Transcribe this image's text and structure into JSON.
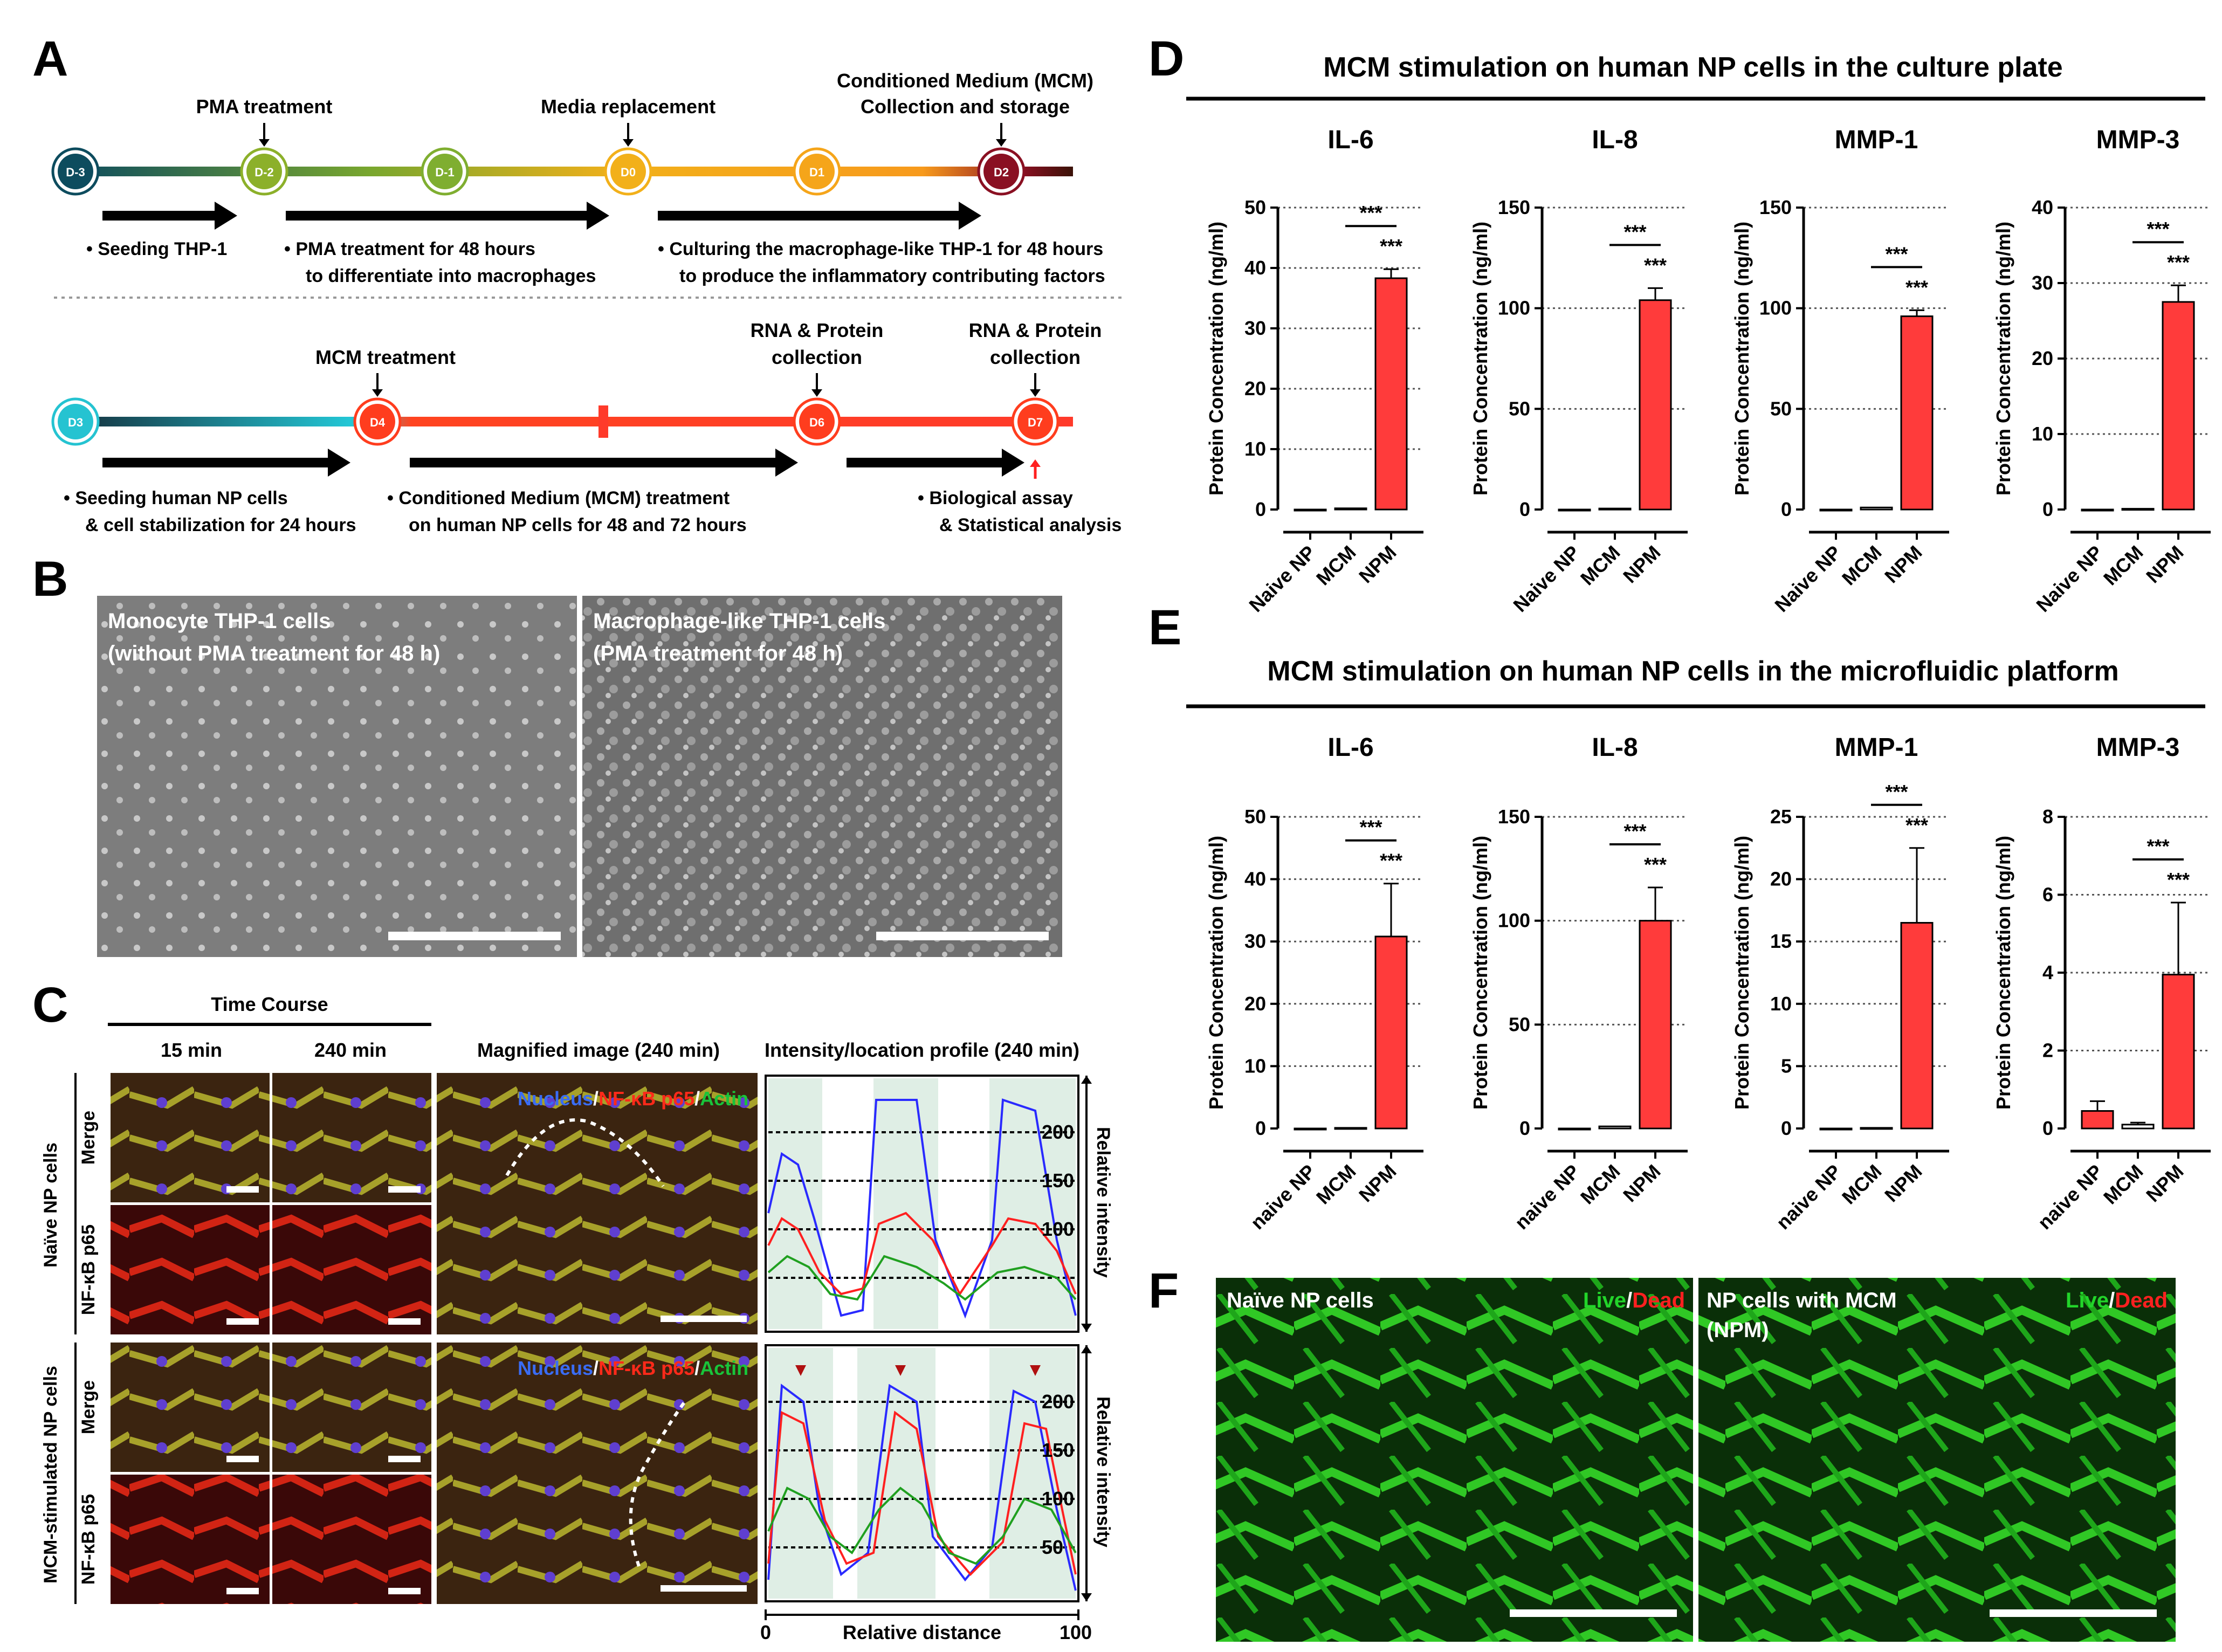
{
  "panels": {
    "A": "A",
    "B": "B",
    "C": "C",
    "D": "D",
    "E": "E",
    "F": "F"
  },
  "panel_a": {
    "timeline1": {
      "nodes": [
        "D-3",
        "D-2",
        "D-1",
        "D0",
        "D1",
        "D2"
      ],
      "top_labels": {
        "pma": "PMA treatment",
        "media": "Media replacement",
        "mcm1": "Conditioned Medium (MCM)",
        "mcm2": "Collection and storage"
      },
      "steps": [
        [
          "• Seeding THP-1"
        ],
        [
          "• PMA treatment for 48 hours",
          "to differentiate into macrophages"
        ],
        [
          "• Culturing the macrophage-like THP-1 for 48 hours",
          "to produce the inflammatory contributing factors"
        ]
      ]
    },
    "timeline2": {
      "nodes": [
        "D3",
        "D4",
        "D6",
        "D7"
      ],
      "top_labels": {
        "mcm_treat": "MCM treatment",
        "rna1a": "RNA & Protein",
        "rna1b": "collection",
        "rna2a": "RNA & Protein",
        "rna2b": "collection"
      },
      "steps": [
        [
          "• Seeding human NP cells",
          "& cell stabilization for 24 hours"
        ],
        [
          "• Conditioned Medium (MCM) treatment",
          "on human NP cells for 48 and 72 hours"
        ],
        [
          "• Biological assay",
          "& Statistical analysis"
        ]
      ]
    }
  },
  "panel_b": {
    "left_1": "Monocyte THP-1 cells",
    "left_2": "(without PMA treatment for 48 h)",
    "right_1": "Macrophage-like THP-1 cells",
    "right_2": "(PMA treatment for 48 h)"
  },
  "panel_c": {
    "time_course": "Time Course",
    "col_15": "15 min",
    "col_240": "240 min",
    "magnified": "Magnified image (240 min)",
    "profile": "Intensity/location profile (240 min)",
    "row_merge": "Merge",
    "row_nfkb": "NF-κB p65",
    "group_naive": "Naïve NP cells",
    "group_mcm": "MCM-stimulated NP cells",
    "legend_nucleus": "Nucleus",
    "legend_nfkb": "NF-κB p65",
    "legend_actin": "Actin",
    "legend_sep": "/",
    "rel_intensity": "Relative intensity",
    "rel_distance": "Relative distance",
    "x0": "0",
    "x100": "100",
    "y_ticks": [
      "200",
      "150",
      "100",
      "50"
    ],
    "colors": {
      "nucleus": "#3a6cf4",
      "nfkb": "#ff2a1a",
      "actin": "#19c43a"
    }
  },
  "panel_d": {
    "title": "MCM stimulation on human NP cells in the culture plate"
  },
  "panel_e": {
    "title": "MCM stimulation on human NP cells in the microfluidic platform"
  },
  "panel_f": {
    "left_label": "Naïve NP cells",
    "right_label_1": "NP cells with MCM",
    "right_label_2": "(NPM)",
    "live": "Live",
    "slash": "/",
    "dead": "Dead",
    "colors": {
      "live": "#22d42a",
      "dead": "#ff2020"
    }
  },
  "chart_data": [
    {
      "type": "bar",
      "panel": "D",
      "title": "IL-6",
      "ylabel": "Protein Concentration (ng/ml)",
      "categories": [
        "Naive NP",
        "MCM",
        "NPM"
      ],
      "values": [
        0,
        0.2,
        38.3
      ],
      "errors": [
        0,
        0,
        1.5
      ],
      "ylim": [
        0,
        50
      ],
      "yticks": [
        0,
        10,
        20,
        30,
        40,
        50
      ],
      "significance": [
        "***",
        "***"
      ],
      "bar_color": "#ff3b3b"
    },
    {
      "type": "bar",
      "panel": "D",
      "title": "IL-8",
      "ylabel": "Protein Concentration (ng/ml)",
      "categories": [
        "Naive NP",
        "MCM",
        "NPM"
      ],
      "values": [
        0,
        0.5,
        104
      ],
      "errors": [
        0,
        0,
        6
      ],
      "ylim": [
        0,
        150
      ],
      "yticks": [
        0,
        50,
        100,
        150
      ],
      "significance": [
        "***",
        "***"
      ],
      "bar_color": "#ff3b3b"
    },
    {
      "type": "bar",
      "panel": "D",
      "title": "MMP-1",
      "ylabel": "Protein Concentration (ng/ml)",
      "categories": [
        "Naive NP",
        "MCM",
        "NPM"
      ],
      "values": [
        0,
        1,
        96
      ],
      "errors": [
        0,
        0,
        3
      ],
      "ylim": [
        0,
        150
      ],
      "yticks": [
        0,
        50,
        100,
        150
      ],
      "significance": [
        "***",
        "***"
      ],
      "bar_color": "#ff3b3b"
    },
    {
      "type": "bar",
      "panel": "D",
      "title": "MMP-3",
      "ylabel": "Protein Concentration (ng/ml)",
      "categories": [
        "Naive NP",
        "MCM",
        "NPM"
      ],
      "values": [
        0,
        0.1,
        27.5
      ],
      "errors": [
        0,
        0,
        2.2
      ],
      "ylim": [
        0,
        40
      ],
      "yticks": [
        0,
        10,
        20,
        30,
        40
      ],
      "significance": [
        "***",
        "***"
      ],
      "bar_color": "#ff3b3b"
    },
    {
      "type": "bar",
      "panel": "E",
      "title": "IL-6",
      "ylabel": "Protein Concentration (ng/ml)",
      "categories": [
        "naive NP",
        "MCM",
        "NPM"
      ],
      "values": [
        0,
        0.1,
        30.8
      ],
      "errors": [
        0,
        0,
        8.5
      ],
      "ylim": [
        0,
        50
      ],
      "yticks": [
        0,
        10,
        20,
        30,
        40,
        50
      ],
      "significance": [
        "***",
        "***"
      ],
      "bar_color": "#ff3b3b"
    },
    {
      "type": "bar",
      "panel": "E",
      "title": "IL-8",
      "ylabel": "Protein Concentration (ng/ml)",
      "categories": [
        "naive NP",
        "MCM",
        "NPM"
      ],
      "values": [
        0,
        1,
        100
      ],
      "errors": [
        0,
        0,
        16
      ],
      "ylim": [
        0,
        150
      ],
      "yticks": [
        0,
        50,
        100,
        150
      ],
      "significance": [
        "***",
        "***"
      ],
      "bar_color": "#ff3b3b"
    },
    {
      "type": "bar",
      "panel": "E",
      "title": "MMP-1",
      "ylabel": "Protein Concentration (ng/ml)",
      "categories": [
        "naive NP",
        "MCM",
        "NPM"
      ],
      "values": [
        0,
        0.05,
        16.5
      ],
      "errors": [
        0,
        0,
        6
      ],
      "ylim": [
        0,
        25
      ],
      "yticks": [
        0,
        5,
        10,
        15,
        20,
        25
      ],
      "significance": [
        "***",
        "***"
      ],
      "bar_color": "#ff3b3b"
    },
    {
      "type": "bar",
      "panel": "E",
      "title": "MMP-3",
      "ylabel": "Protein Concentration (ng/ml)",
      "categories": [
        "naive NP",
        "MCM",
        "NPM"
      ],
      "values": [
        0.45,
        0.1,
        3.95
      ],
      "errors": [
        0.25,
        0.05,
        1.85
      ],
      "ylim": [
        0,
        8
      ],
      "yticks": [
        0,
        2,
        4,
        6,
        8
      ],
      "significance": [
        "***",
        "***"
      ],
      "bar_color": "#ff3b3b"
    }
  ]
}
